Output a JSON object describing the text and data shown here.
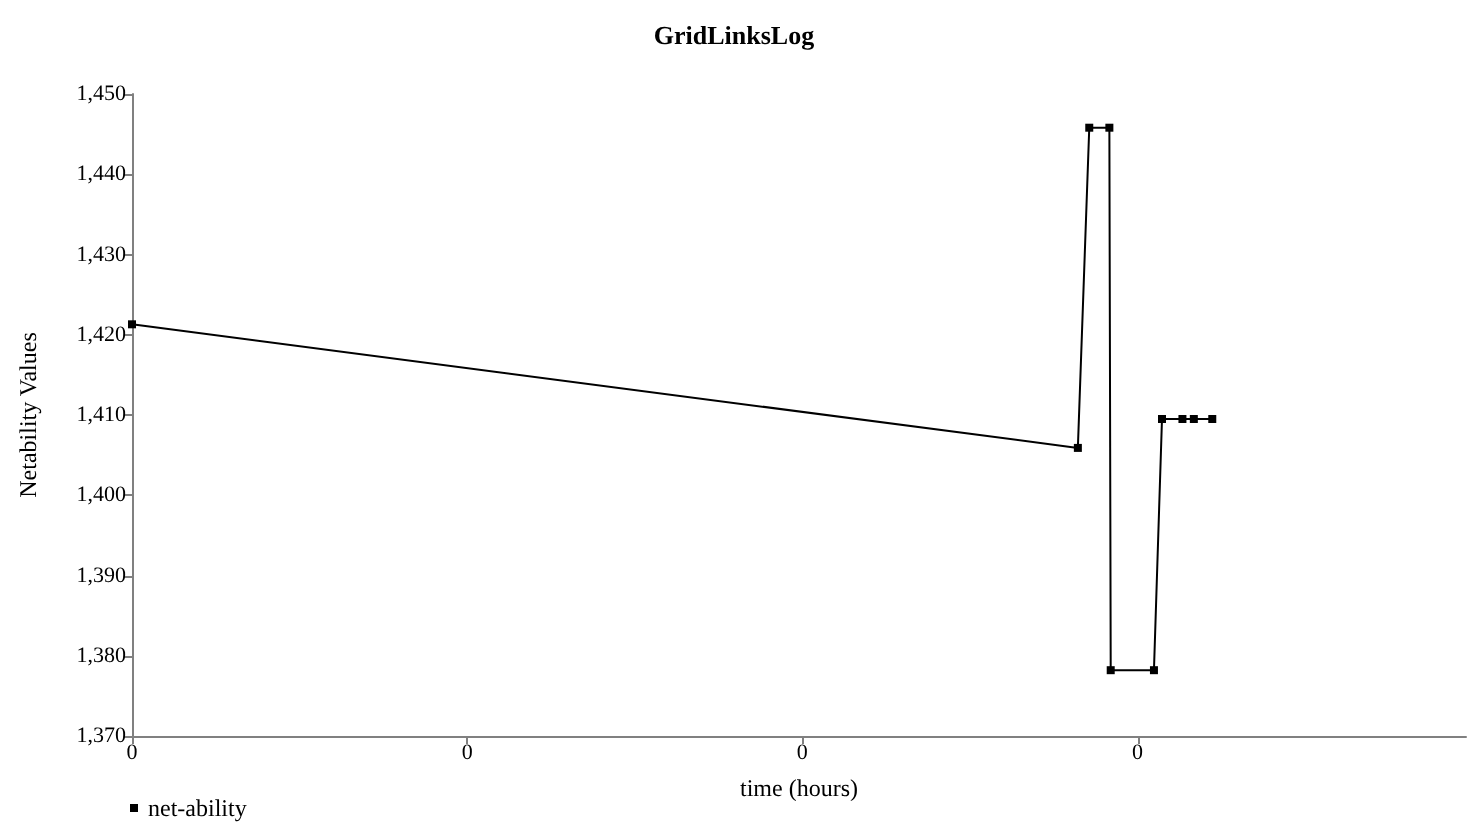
{
  "chart_data": {
    "type": "line",
    "title": "GridLinksLog",
    "xlabel": "time (hours)",
    "ylabel": "Netability Values",
    "x": [
      0,
      0.2822,
      0.2856,
      0.2916,
      0.292,
      0.3049,
      0.3073,
      0.3134,
      0.3168,
      0.3223
    ],
    "series": [
      {
        "name": "net-ability",
        "color": "#000000",
        "values": [
          1421.3,
          1405.9,
          1445.8,
          1445.8,
          1378.2,
          1378.2,
          1409.5,
          1409.5,
          1409.5,
          1409.5
        ]
      }
    ],
    "xlim": [
      0,
      0.398
    ],
    "xticks": [
      0,
      {
        "value": 0.1,
        "label": "0"
      },
      {
        "value": 0.2,
        "label": "0"
      },
      {
        "value": 0.3,
        "label": "0"
      }
    ],
    "ylim": [
      1370,
      1450
    ],
    "yticks": [
      {
        "value": 1370,
        "label": "1,370"
      },
      {
        "value": 1380,
        "label": "1,380"
      },
      {
        "value": 1390,
        "label": "1,390"
      },
      {
        "value": 1400,
        "label": "1,400"
      },
      {
        "value": 1410,
        "label": "1,410"
      },
      {
        "value": 1420,
        "label": "1,420"
      },
      {
        "value": 1430,
        "label": "1,430"
      },
      {
        "value": 1440,
        "label": "1,440"
      },
      {
        "value": 1450,
        "label": "1,450"
      }
    ],
    "grid": false,
    "legend": "bottom left",
    "marker": "square",
    "line_style": "solid"
  }
}
